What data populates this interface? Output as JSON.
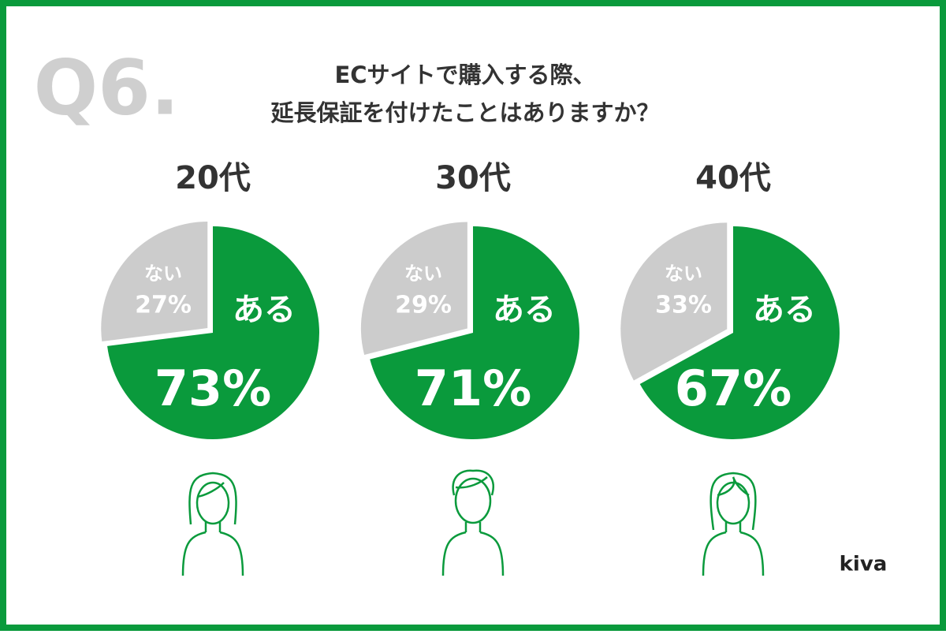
{
  "question_number": "Q6.",
  "title": [
    "ECサイトで購入する際、",
    "延長保証を付けたことはありますか？"
  ],
  "brand": "kiva",
  "chart_data": [
    {
      "type": "pie",
      "title": "20代",
      "categories": [
        "ある",
        "ない"
      ],
      "values": [
        73,
        27
      ],
      "value_labels": [
        "73%",
        "27%"
      ],
      "colors": [
        "#0a9a3c",
        "#cccccc"
      ]
    },
    {
      "type": "pie",
      "title": "30代",
      "categories": [
        "ある",
        "ない"
      ],
      "values": [
        71,
        29
      ],
      "value_labels": [
        "71%",
        "29%"
      ],
      "colors": [
        "#0a9a3c",
        "#cccccc"
      ]
    },
    {
      "type": "pie",
      "title": "40代",
      "categories": [
        "ある",
        "ない"
      ],
      "values": [
        67,
        33
      ],
      "value_labels": [
        "67%",
        "33%"
      ],
      "colors": [
        "#0a9a3c",
        "#cccccc"
      ]
    }
  ]
}
